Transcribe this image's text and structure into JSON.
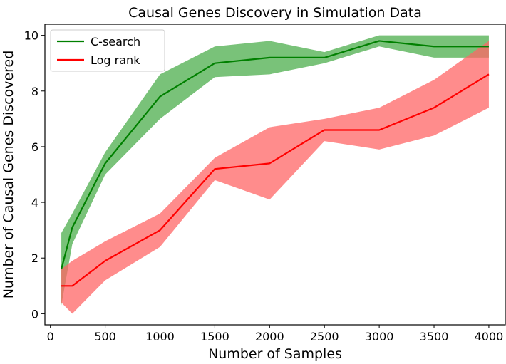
{
  "chart_data": {
    "type": "line",
    "title": "Causal Genes Discovery in Simulation Data",
    "xlabel": "Number of Samples",
    "ylabel": "Number of Causal Genes Discovered",
    "xlim": [
      -50,
      4150
    ],
    "ylim": [
      -0.4,
      10.4
    ],
    "xticks": [
      0,
      500,
      1000,
      1500,
      2000,
      2500,
      3000,
      3500,
      4000
    ],
    "yticks": [
      0,
      2,
      4,
      6,
      8,
      10
    ],
    "grid": false,
    "legend_position": "top-left",
    "x": [
      100,
      200,
      500,
      1000,
      1500,
      2000,
      2500,
      3000,
      3500,
      4000
    ],
    "series": [
      {
        "name": "C-search",
        "color": "#008000",
        "band_color": "#4cae4c",
        "values": [
          1.6,
          3.1,
          5.4,
          7.8,
          9.0,
          9.2,
          9.2,
          9.8,
          9.6,
          9.6
        ],
        "lower": [
          0.3,
          2.5,
          5.0,
          7.0,
          8.5,
          8.6,
          9.0,
          9.6,
          9.2,
          9.2
        ],
        "upper": [
          2.9,
          3.6,
          5.8,
          8.6,
          9.6,
          9.8,
          9.4,
          10.0,
          10.0,
          10.0
        ]
      },
      {
        "name": "Log rank",
        "color": "#ff0000",
        "band_color": "#ff6666",
        "values": [
          1.0,
          1.0,
          1.9,
          3.0,
          5.2,
          5.4,
          6.6,
          6.6,
          7.4,
          8.6
        ],
        "lower": [
          0.4,
          0.0,
          1.2,
          2.4,
          4.8,
          4.1,
          6.2,
          5.9,
          6.4,
          7.4
        ],
        "upper": [
          1.6,
          1.9,
          2.6,
          3.6,
          5.6,
          6.7,
          7.0,
          7.4,
          8.4,
          9.8
        ]
      }
    ]
  }
}
